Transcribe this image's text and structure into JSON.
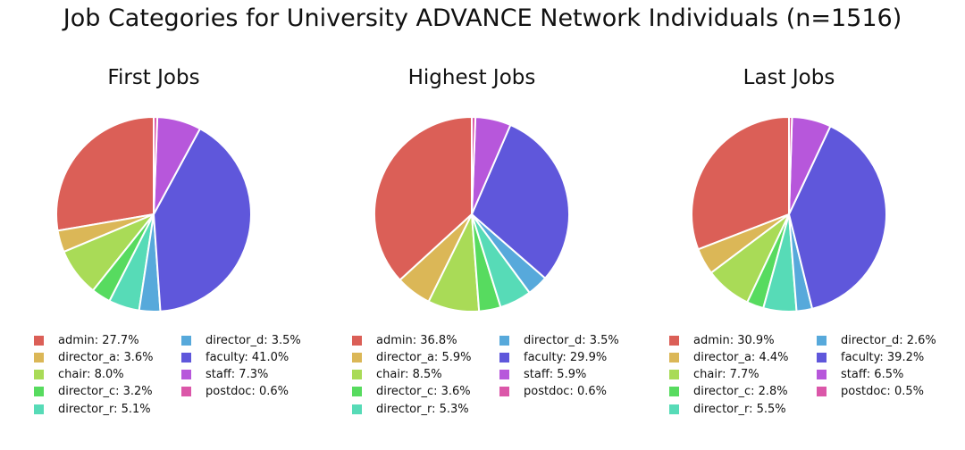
{
  "title": "Job Categories for University ADVANCE Network Individuals (n=1516)",
  "chart_data": [
    {
      "type": "pie",
      "title": "First Jobs",
      "categories": [
        "admin",
        "director_a",
        "chair",
        "director_c",
        "director_r",
        "director_d",
        "faculty",
        "staff",
        "postdoc"
      ],
      "values": [
        27.7,
        3.6,
        8.0,
        3.2,
        5.1,
        3.5,
        41.0,
        7.3,
        0.6
      ],
      "legend_labels": [
        "admin: 27.7%",
        "director_a: 3.6%",
        "chair: 8.0%",
        "director_c: 3.2%",
        "director_r: 5.1%",
        "director_d: 3.5%",
        "faculty: 41.0%",
        "staff: 7.3%",
        "postdoc: 0.6%"
      ],
      "start_angle": "top",
      "direction": "counterclockwise",
      "legend": "below"
    },
    {
      "type": "pie",
      "title": "Highest Jobs",
      "categories": [
        "admin",
        "director_a",
        "chair",
        "director_c",
        "director_r",
        "director_d",
        "faculty",
        "staff",
        "postdoc"
      ],
      "values": [
        36.8,
        5.9,
        8.5,
        3.6,
        5.3,
        3.5,
        29.9,
        5.9,
        0.6
      ],
      "legend_labels": [
        "admin: 36.8%",
        "director_a: 5.9%",
        "chair: 8.5%",
        "director_c: 3.6%",
        "director_r: 5.3%",
        "director_d: 3.5%",
        "faculty: 29.9%",
        "staff: 5.9%",
        "postdoc: 0.6%"
      ],
      "start_angle": "top",
      "direction": "counterclockwise",
      "legend": "below"
    },
    {
      "type": "pie",
      "title": "Last Jobs",
      "categories": [
        "admin",
        "director_a",
        "chair",
        "director_c",
        "director_r",
        "director_d",
        "faculty",
        "staff",
        "postdoc"
      ],
      "values": [
        30.9,
        4.4,
        7.7,
        2.8,
        5.5,
        2.6,
        39.2,
        6.5,
        0.5
      ],
      "legend_labels": [
        "admin: 30.9%",
        "director_a: 4.4%",
        "chair: 7.7%",
        "director_c: 2.8%",
        "director_r: 5.5%",
        "director_d: 2.6%",
        "faculty: 39.2%",
        "staff: 6.5%",
        "postdoc: 0.5%"
      ],
      "start_angle": "top",
      "direction": "counterclockwise",
      "legend": "below"
    }
  ],
  "colors": [
    "#db5f57",
    "#dbb757",
    "#a9db57",
    "#57db5f",
    "#57dbb7",
    "#57a9db",
    "#5f57db",
    "#b757db",
    "#db57a9"
  ]
}
